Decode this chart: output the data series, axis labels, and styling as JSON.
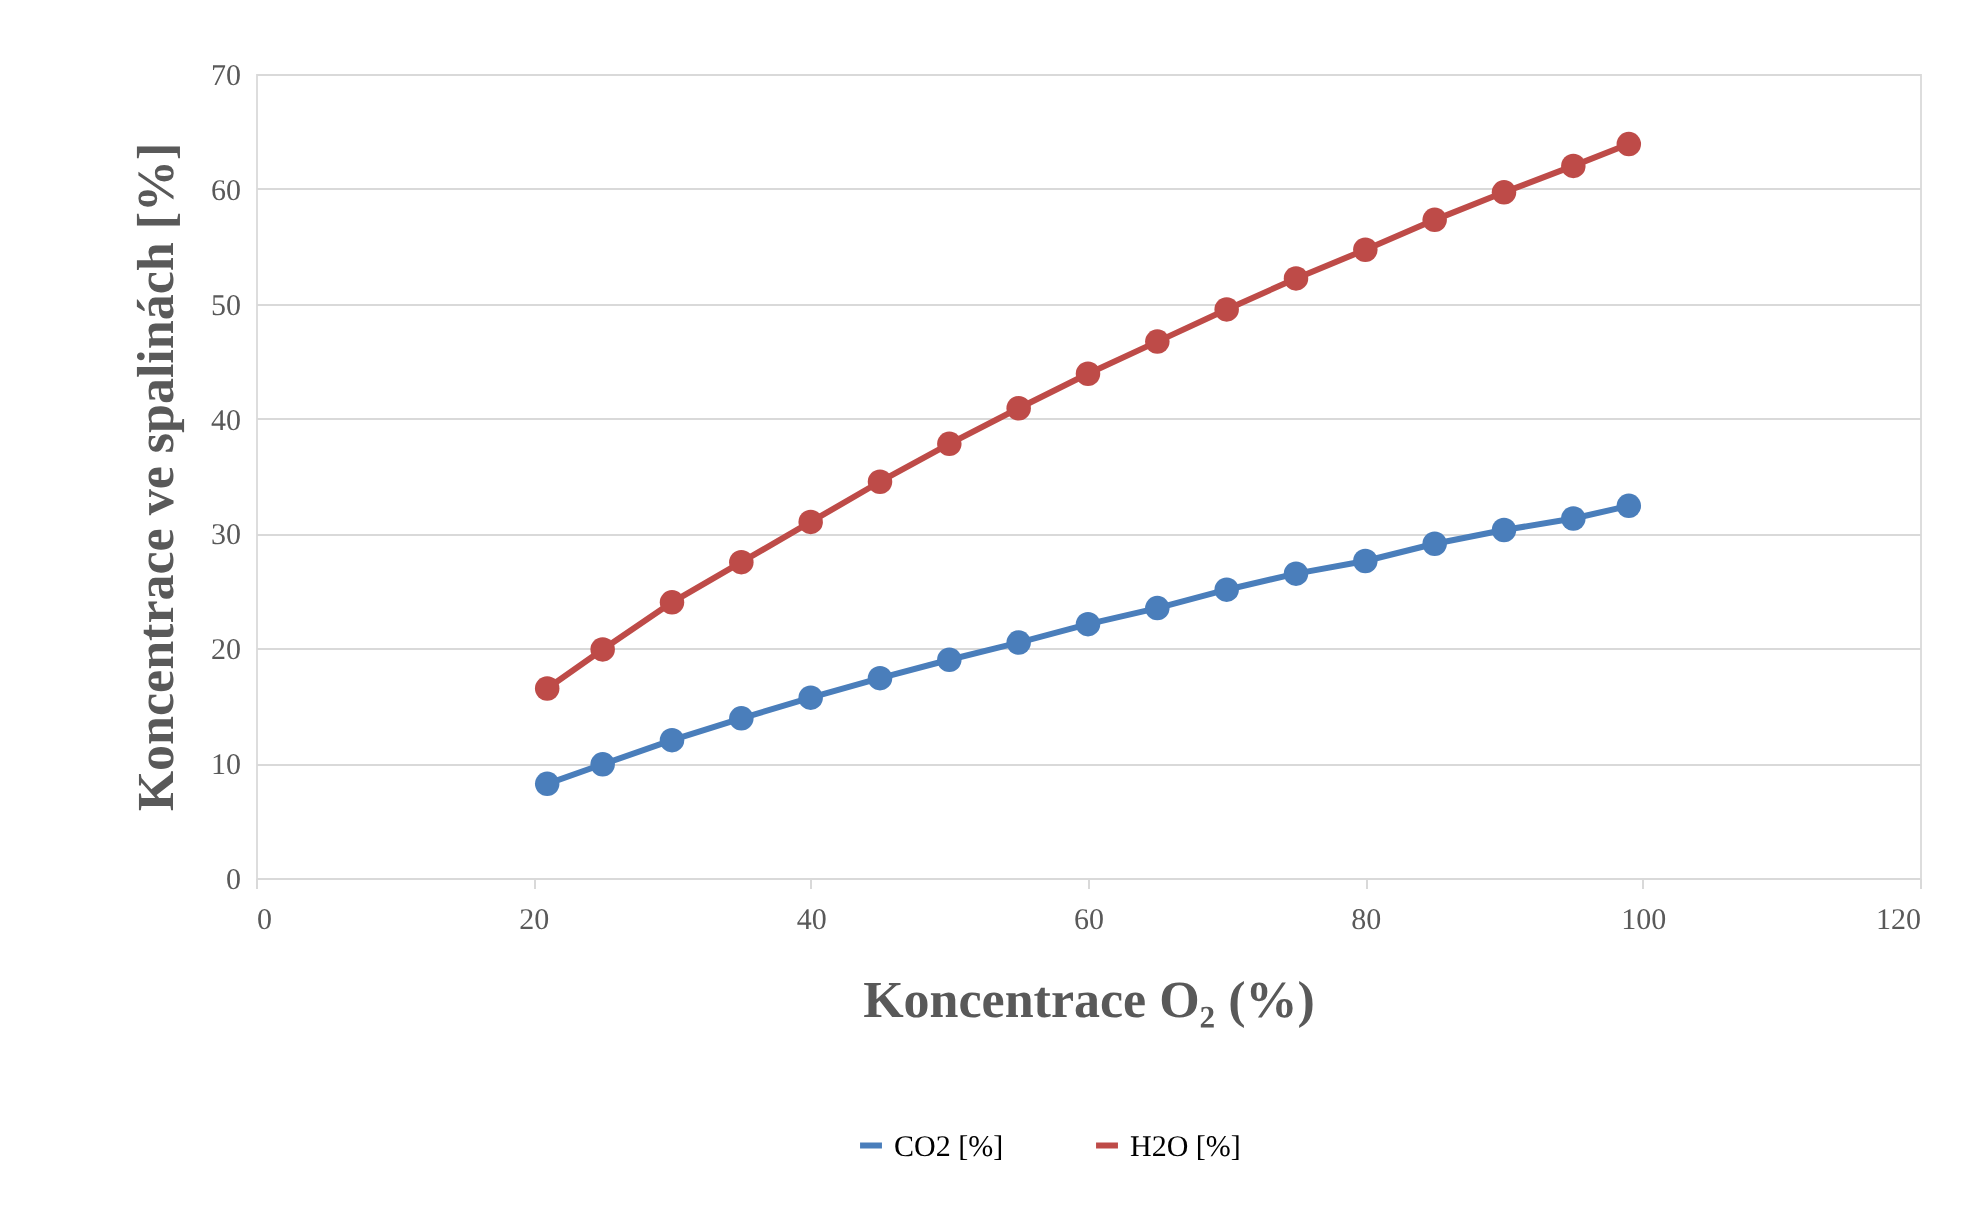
{
  "chart_data": {
    "type": "line",
    "xlabel": "Koncentrace O₂ (%)",
    "ylabel": "Koncentrace ve spalinách [%]",
    "x": [
      21,
      25,
      30,
      35,
      40,
      45,
      50,
      55,
      60,
      65,
      70,
      75,
      80,
      85,
      90,
      95,
      99
    ],
    "series": [
      {
        "name": "CO2 [%]",
        "color": "#4a7ebb",
        "values": [
          8.2,
          9.9,
          12.0,
          13.9,
          15.7,
          17.4,
          19.0,
          20.5,
          22.1,
          23.5,
          25.1,
          26.5,
          27.6,
          29.1,
          30.3,
          31.3,
          32.4
        ]
      },
      {
        "name": "H2O [%]",
        "color": "#be4b48",
        "values": [
          16.5,
          19.9,
          24.0,
          27.5,
          31.0,
          34.5,
          37.8,
          40.9,
          43.9,
          46.7,
          49.5,
          52.2,
          54.7,
          57.3,
          59.7,
          62.0,
          63.9
        ]
      }
    ],
    "xlim": [
      0,
      120
    ],
    "xticks": [
      0,
      20,
      40,
      60,
      80,
      100,
      120
    ],
    "ylim": [
      0,
      70
    ],
    "yticks": [
      0,
      10,
      20,
      30,
      40,
      50,
      60,
      70
    ],
    "grid": "y",
    "legend": "bottom",
    "marker": "circle",
    "line_style": "solid"
  }
}
